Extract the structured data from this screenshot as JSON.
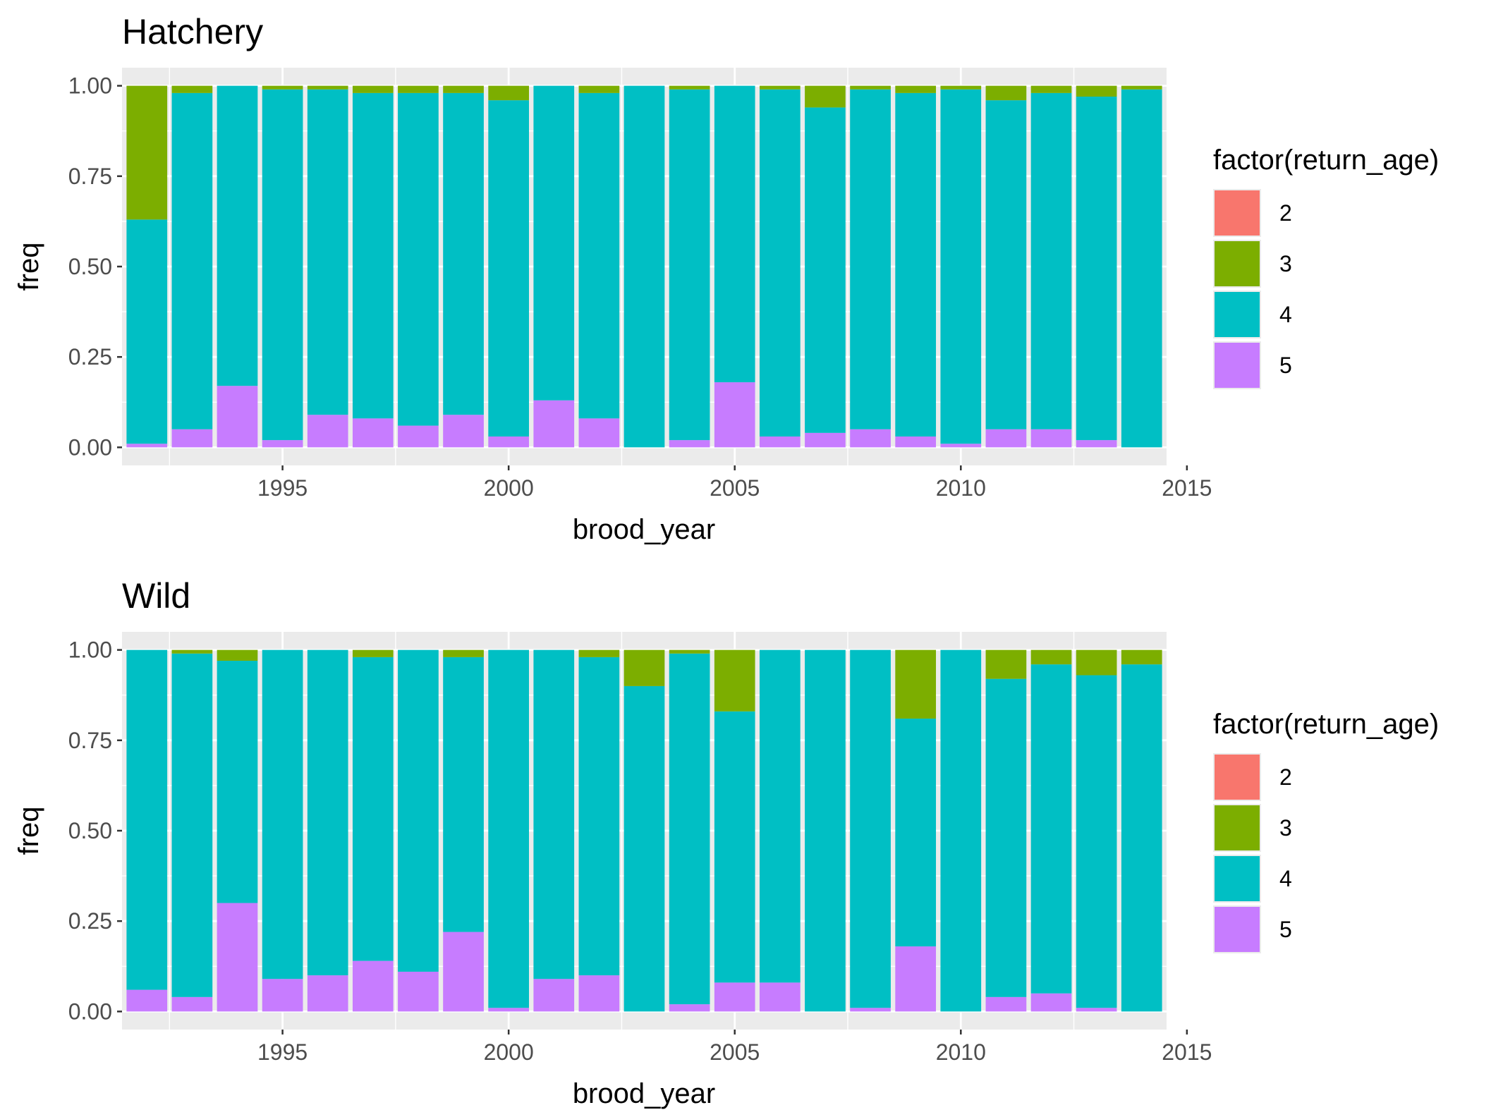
{
  "colors": {
    "panel_bg": "#ebebeb",
    "grid": "#ffffff",
    "tick_text": "#4d4d4d",
    "age_2": "#F8766D",
    "age_3": "#7CAE00",
    "age_4": "#00BFC4",
    "age_5": "#C77CFF"
  },
  "chart_data": [
    {
      "type": "bar",
      "stacked": true,
      "title": "Hatchery",
      "xlabel": "brood_year",
      "ylabel": "freq",
      "xlim": [
        1991.45,
        2014.55
      ],
      "ylim": [
        -0.05,
        1.05
      ],
      "x_ticks": [
        1995,
        2000,
        2005,
        2010,
        2015
      ],
      "y_ticks": [
        "0.00",
        "0.25",
        "0.50",
        "0.75",
        "1.00"
      ],
      "grid": true,
      "legend": {
        "title": "factor(return_age)",
        "position": "right",
        "entries": [
          "2",
          "3",
          "4",
          "5"
        ]
      },
      "categories": [
        1992,
        1993,
        1994,
        1995,
        1996,
        1997,
        1998,
        1999,
        2000,
        2001,
        2002,
        2003,
        2004,
        2005,
        2006,
        2007,
        2008,
        2009,
        2010,
        2011,
        2012,
        2013,
        2014
      ],
      "series": [
        {
          "name": "5",
          "values": [
            0.01,
            0.05,
            0.17,
            0.02,
            0.09,
            0.08,
            0.06,
            0.09,
            0.03,
            0.13,
            0.08,
            0.0,
            0.02,
            0.18,
            0.03,
            0.04,
            0.05,
            0.03,
            0.01,
            0.05,
            0.05,
            0.02,
            0.0
          ]
        },
        {
          "name": "4",
          "values": [
            0.62,
            0.93,
            0.83,
            0.97,
            0.9,
            0.9,
            0.92,
            0.89,
            0.93,
            0.87,
            0.9,
            1.0,
            0.97,
            0.82,
            0.96,
            0.9,
            0.94,
            0.95,
            0.98,
            0.91,
            0.93,
            0.95,
            0.99
          ]
        },
        {
          "name": "3",
          "values": [
            0.37,
            0.02,
            0.0,
            0.01,
            0.01,
            0.02,
            0.02,
            0.02,
            0.04,
            0.0,
            0.02,
            0.0,
            0.01,
            0.0,
            0.01,
            0.06,
            0.01,
            0.02,
            0.01,
            0.04,
            0.02,
            0.03,
            0.01
          ]
        },
        {
          "name": "2",
          "values": [
            0,
            0,
            0,
            0,
            0,
            0,
            0,
            0,
            0,
            0,
            0,
            0,
            0,
            0,
            0,
            0,
            0,
            0,
            0,
            0,
            0,
            0,
            0
          ]
        }
      ]
    },
    {
      "type": "bar",
      "stacked": true,
      "title": "Wild",
      "xlabel": "brood_year",
      "ylabel": "freq",
      "xlim": [
        1991.45,
        2014.55
      ],
      "ylim": [
        -0.05,
        1.05
      ],
      "x_ticks": [
        1995,
        2000,
        2005,
        2010,
        2015
      ],
      "y_ticks": [
        "0.00",
        "0.25",
        "0.50",
        "0.75",
        "1.00"
      ],
      "grid": true,
      "legend": {
        "title": "factor(return_age)",
        "position": "right",
        "entries": [
          "2",
          "3",
          "4",
          "5"
        ]
      },
      "categories": [
        1992,
        1993,
        1994,
        1995,
        1996,
        1997,
        1998,
        1999,
        2000,
        2001,
        2002,
        2003,
        2004,
        2005,
        2006,
        2007,
        2008,
        2009,
        2010,
        2011,
        2012,
        2013,
        2014
      ],
      "series": [
        {
          "name": "5",
          "values": [
            0.06,
            0.04,
            0.3,
            0.09,
            0.1,
            0.14,
            0.11,
            0.22,
            0.01,
            0.09,
            0.1,
            0.0,
            0.02,
            0.08,
            0.08,
            0.0,
            0.01,
            0.18,
            0.0,
            0.04,
            0.05,
            0.01,
            0.0
          ]
        },
        {
          "name": "4",
          "values": [
            0.94,
            0.95,
            0.67,
            0.91,
            0.9,
            0.84,
            0.89,
            0.76,
            0.99,
            0.91,
            0.88,
            0.9,
            0.97,
            0.75,
            0.92,
            1.0,
            0.99,
            0.63,
            1.0,
            0.88,
            0.91,
            0.92,
            0.96
          ]
        },
        {
          "name": "3",
          "values": [
            0.0,
            0.01,
            0.03,
            0.0,
            0.0,
            0.02,
            0.0,
            0.02,
            0.0,
            0.0,
            0.02,
            0.1,
            0.01,
            0.17,
            0.0,
            0.0,
            0.0,
            0.19,
            0.0,
            0.08,
            0.04,
            0.07,
            0.04
          ]
        },
        {
          "name": "2",
          "values": [
            0,
            0,
            0,
            0,
            0,
            0,
            0,
            0,
            0,
            0,
            0,
            0,
            0,
            0,
            0,
            0,
            0,
            0,
            0,
            0,
            0,
            0,
            0
          ]
        }
      ]
    }
  ]
}
